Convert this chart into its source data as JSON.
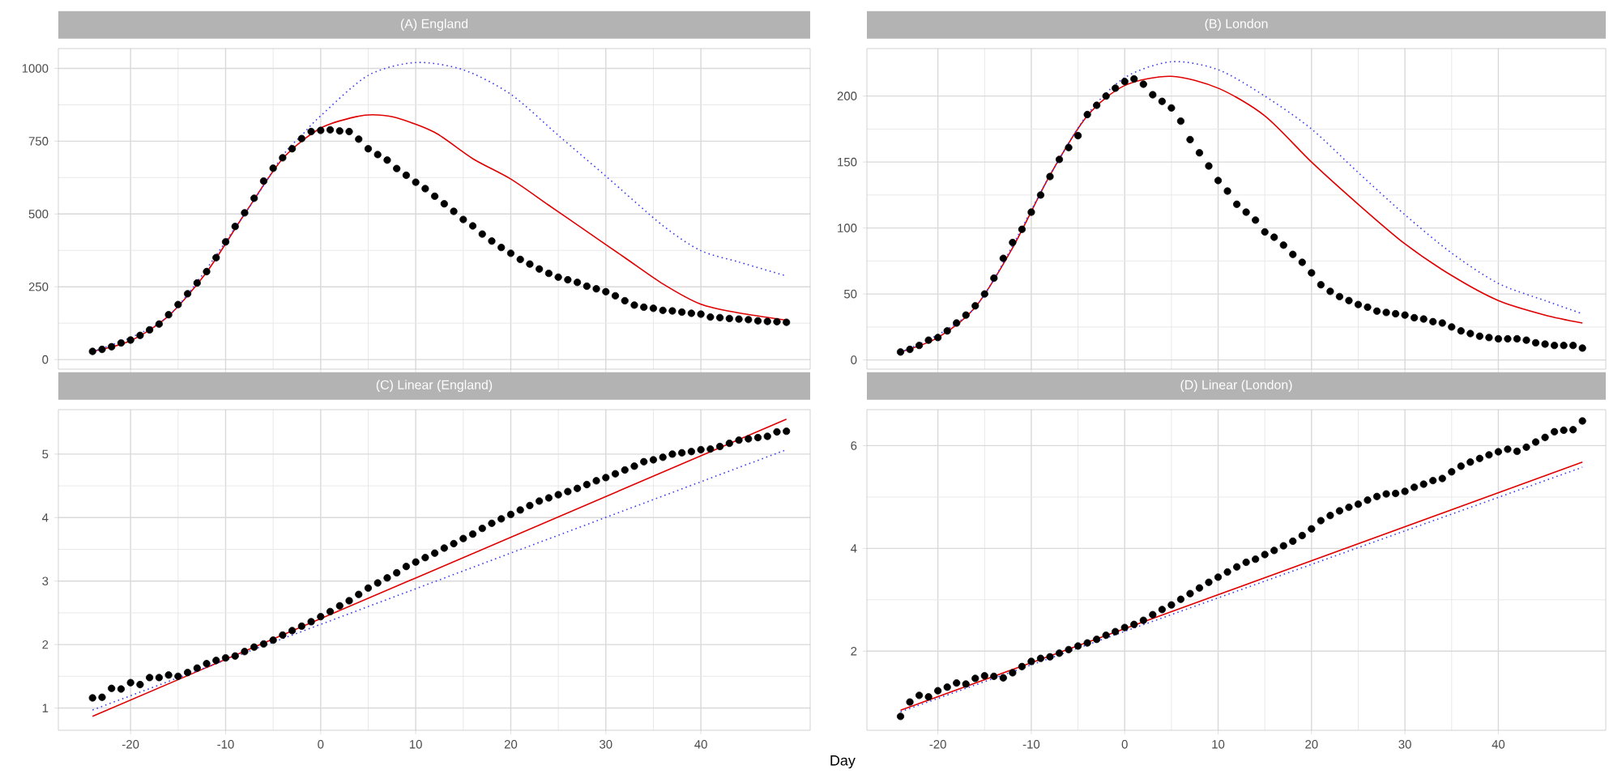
{
  "chart_data": [
    {
      "type": "scatter",
      "title": "(A) England",
      "grid": true,
      "tick_labels": "y",
      "x": [
        -24,
        -23,
        -22,
        -21,
        -20,
        -19,
        -18,
        -17,
        -16,
        -15,
        -14,
        -13,
        -12,
        -11,
        -10,
        -9,
        -8,
        -7,
        -6,
        -5,
        -4,
        -3,
        -2,
        -1,
        0,
        1,
        2,
        3,
        4,
        5,
        6,
        7,
        8,
        9,
        10,
        11,
        12,
        13,
        14,
        15,
        16,
        17,
        18,
        19,
        20,
        21,
        22,
        23,
        24,
        25,
        26,
        27,
        28,
        29,
        30,
        31,
        32,
        33,
        34,
        35,
        36,
        37,
        38,
        39,
        40,
        41,
        42,
        43,
        44,
        45,
        46,
        47,
        48,
        49
      ],
      "xlim": [
        -27.6,
        51.5
      ],
      "ylim": [
        -33,
        1068
      ],
      "xticks": [
        -20,
        -10,
        0,
        10,
        20,
        30,
        40
      ],
      "yticks": [
        0,
        250,
        500,
        750,
        1000
      ],
      "series": [
        {
          "color": "#000000",
          "values": [
            28,
            35,
            44,
            57,
            67,
            83,
            102,
            122,
            154,
            189,
            226,
            263,
            302,
            350,
            404,
            457,
            504,
            554,
            613,
            657,
            693,
            724,
            759,
            783,
            787,
            789,
            785,
            783,
            757,
            724,
            704,
            685,
            656,
            633,
            609,
            587,
            561,
            535,
            509,
            481,
            459,
            431,
            407,
            385,
            365,
            344,
            328,
            311,
            296,
            283,
            274,
            265,
            252,
            243,
            233,
            219,
            202,
            187,
            180,
            176,
            169,
            167,
            163,
            159,
            156,
            146,
            144,
            141,
            139,
            137,
            133,
            131,
            130,
            128
          ]
        },
        {
          "type": "line",
          "line_style": "solid",
          "color": "#e00000",
          "x": [
            -24,
            -20,
            -16,
            -12,
            -8,
            -4,
            0,
            4,
            6,
            8,
            12,
            16,
            20,
            24,
            28,
            32,
            36,
            40,
            44,
            49
          ],
          "values": [
            28,
            65,
            150,
            300,
            500,
            690,
            795,
            836,
            840,
            830,
            780,
            690,
            620,
            530,
            440,
            350,
            260,
            190,
            160,
            135
          ]
        },
        {
          "type": "line",
          "line_style": "dotted",
          "color": "#3c3cf0",
          "x": [
            -24,
            -16,
            -8,
            -4,
            -2,
            0,
            5,
            10,
            15,
            20,
            25,
            30,
            36,
            40,
            44,
            49
          ],
          "values": [
            28,
            150,
            500,
            700,
            770,
            837,
            976,
            1020,
            995,
            911,
            770,
            630,
            460,
            374,
            335,
            287
          ]
        }
      ]
    },
    {
      "type": "scatter",
      "title": "(B) London",
      "grid": true,
      "tick_labels": "y",
      "x": [
        -24,
        -23,
        -22,
        -21,
        -20,
        -19,
        -18,
        -17,
        -16,
        -15,
        -14,
        -13,
        -12,
        -11,
        -10,
        -9,
        -8,
        -7,
        -6,
        -5,
        -4,
        -3,
        -2,
        -1,
        0,
        1,
        2,
        3,
        4,
        5,
        6,
        7,
        8,
        9,
        10,
        11,
        12,
        13,
        14,
        15,
        16,
        17,
        18,
        19,
        20,
        21,
        22,
        23,
        24,
        25,
        26,
        27,
        28,
        29,
        30,
        31,
        32,
        33,
        34,
        35,
        36,
        37,
        38,
        39,
        40,
        41,
        42,
        43,
        44,
        45,
        46,
        47,
        48,
        49
      ],
      "xlim": [
        -27.6,
        51.5
      ],
      "ylim": [
        -7,
        236
      ],
      "xticks": [
        -20,
        -10,
        0,
        10,
        20,
        30,
        40
      ],
      "yticks": [
        0,
        50,
        100,
        150,
        200
      ],
      "series": [
        {
          "color": "#000000",
          "values": [
            6,
            8,
            11,
            15,
            17,
            22,
            28,
            34,
            41,
            50,
            62,
            77,
            89,
            99,
            112,
            125,
            139,
            152,
            161,
            170,
            186,
            193,
            200,
            206,
            211,
            213,
            209,
            201,
            196,
            191,
            181,
            167,
            157,
            147,
            136,
            128,
            118,
            112,
            106,
            97,
            93,
            87,
            80,
            74,
            66,
            57,
            52,
            48,
            45,
            42,
            40,
            37,
            36,
            35,
            34,
            32,
            31,
            29,
            28,
            25,
            22,
            20,
            18,
            17,
            16,
            16,
            16,
            15,
            13,
            12,
            11,
            11,
            11,
            9
          ]
        },
        {
          "type": "line",
          "line_style": "solid",
          "color": "#e00000",
          "x": [
            -24,
            -20,
            -16,
            -12,
            -8,
            -4,
            0,
            5,
            10,
            15,
            20,
            25,
            30,
            35,
            40,
            45,
            49
          ],
          "values": [
            6,
            17,
            40,
            85,
            140,
            185,
            208,
            215,
            206,
            185,
            150,
            118,
            88,
            64,
            45,
            34,
            28
          ]
        },
        {
          "type": "line",
          "line_style": "dotted",
          "color": "#3c3cf0",
          "x": [
            -24,
            -16,
            -8,
            -4,
            0,
            5,
            10,
            15,
            20,
            25,
            30,
            35,
            40,
            45,
            49
          ],
          "values": [
            6,
            40,
            140,
            186,
            214,
            226,
            220,
            200,
            175,
            142,
            110,
            81,
            58,
            45,
            35
          ]
        }
      ]
    },
    {
      "type": "scatter",
      "title": "(C) Linear (England)",
      "grid": true,
      "x": [
        -24,
        -23,
        -22,
        -21,
        -20,
        -19,
        -18,
        -17,
        -16,
        -15,
        -14,
        -13,
        -12,
        -11,
        -10,
        -9,
        -8,
        -7,
        -6,
        -5,
        -4,
        -3,
        -2,
        -1,
        0,
        1,
        2,
        3,
        4,
        5,
        6,
        7,
        8,
        9,
        10,
        11,
        12,
        13,
        14,
        15,
        16,
        17,
        18,
        19,
        20,
        21,
        22,
        23,
        24,
        25,
        26,
        27,
        28,
        29,
        30,
        31,
        32,
        33,
        34,
        35,
        36,
        37,
        38,
        39,
        40,
        41,
        42,
        43,
        44,
        45,
        46,
        47,
        48,
        49
      ],
      "xlim": [
        -27.6,
        51.5
      ],
      "ylim": [
        0.65,
        5.7
      ],
      "xticks": [
        -20,
        -10,
        0,
        10,
        20,
        30,
        40
      ],
      "yticks": [
        1,
        2,
        3,
        4,
        5
      ],
      "series": [
        {
          "color": "#000000",
          "values": [
            1.16,
            1.17,
            1.31,
            1.3,
            1.4,
            1.37,
            1.48,
            1.48,
            1.52,
            1.5,
            1.56,
            1.63,
            1.7,
            1.75,
            1.79,
            1.82,
            1.89,
            1.96,
            2.01,
            2.07,
            2.15,
            2.22,
            2.29,
            2.36,
            2.44,
            2.52,
            2.61,
            2.69,
            2.79,
            2.89,
            2.97,
            3.05,
            3.13,
            3.23,
            3.3,
            3.37,
            3.44,
            3.52,
            3.59,
            3.67,
            3.74,
            3.83,
            3.91,
            3.98,
            4.05,
            4.12,
            4.19,
            4.26,
            4.31,
            4.36,
            4.41,
            4.46,
            4.52,
            4.58,
            4.63,
            4.69,
            4.75,
            4.81,
            4.88,
            4.91,
            4.95,
            5.0,
            5.02,
            5.04,
            5.07,
            5.08,
            5.12,
            5.17,
            5.22,
            5.24,
            5.26,
            5.28,
            5.35,
            5.36
          ]
        },
        {
          "type": "line",
          "line_style": "solid",
          "color": "#e00000",
          "x": [
            -24,
            49
          ],
          "values": [
            0.87,
            5.55
          ]
        },
        {
          "type": "line",
          "line_style": "dotted",
          "color": "#3c3cf0",
          "x": [
            -24,
            49
          ],
          "values": [
            0.97,
            5.07
          ]
        }
      ]
    },
    {
      "type": "scatter",
      "title": "(D) Linear (London)",
      "xlabel": "Day",
      "grid": true,
      "x": [
        -24,
        -23,
        -22,
        -21,
        -20,
        -19,
        -18,
        -17,
        -16,
        -15,
        -14,
        -13,
        -12,
        -11,
        -10,
        -9,
        -8,
        -7,
        -6,
        -5,
        -4,
        -3,
        -2,
        -1,
        0,
        1,
        2,
        3,
        4,
        5,
        6,
        7,
        8,
        9,
        10,
        11,
        12,
        13,
        14,
        15,
        16,
        17,
        18,
        19,
        20,
        21,
        22,
        23,
        24,
        25,
        26,
        27,
        28,
        29,
        30,
        31,
        32,
        33,
        34,
        35,
        36,
        37,
        38,
        39,
        40,
        41,
        42,
        43,
        44,
        45,
        46,
        47,
        48,
        49
      ],
      "xlim": [
        -27.6,
        51.5
      ],
      "ylim": [
        0.46,
        6.7
      ],
      "xticks": [
        -20,
        -10,
        0,
        10,
        20,
        30,
        40
      ],
      "yticks": [
        2,
        4,
        6
      ],
      "series": [
        {
          "color": "#000000",
          "values": [
            0.73,
            1.01,
            1.14,
            1.11,
            1.23,
            1.3,
            1.38,
            1.36,
            1.47,
            1.52,
            1.51,
            1.48,
            1.58,
            1.7,
            1.8,
            1.86,
            1.89,
            1.96,
            2.03,
            2.1,
            2.16,
            2.23,
            2.31,
            2.38,
            2.46,
            2.52,
            2.6,
            2.71,
            2.81,
            2.9,
            3.01,
            3.12,
            3.23,
            3.34,
            3.44,
            3.54,
            3.64,
            3.73,
            3.79,
            3.88,
            3.96,
            4.05,
            4.14,
            4.25,
            4.38,
            4.54,
            4.64,
            4.73,
            4.8,
            4.86,
            4.94,
            5.01,
            5.06,
            5.07,
            5.11,
            5.19,
            5.25,
            5.32,
            5.36,
            5.49,
            5.6,
            5.68,
            5.75,
            5.82,
            5.88,
            5.93,
            5.89,
            5.97,
            6.07,
            6.16,
            6.27,
            6.3,
            6.31,
            6.48
          ]
        },
        {
          "type": "line",
          "line_style": "solid",
          "color": "#e00000",
          "x": [
            -24,
            49
          ],
          "values": [
            0.85,
            5.68
          ]
        },
        {
          "type": "line",
          "line_style": "dotted",
          "color": "#3c3cf0",
          "x": [
            -24,
            49
          ],
          "values": [
            0.82,
            5.58
          ]
        }
      ]
    }
  ]
}
